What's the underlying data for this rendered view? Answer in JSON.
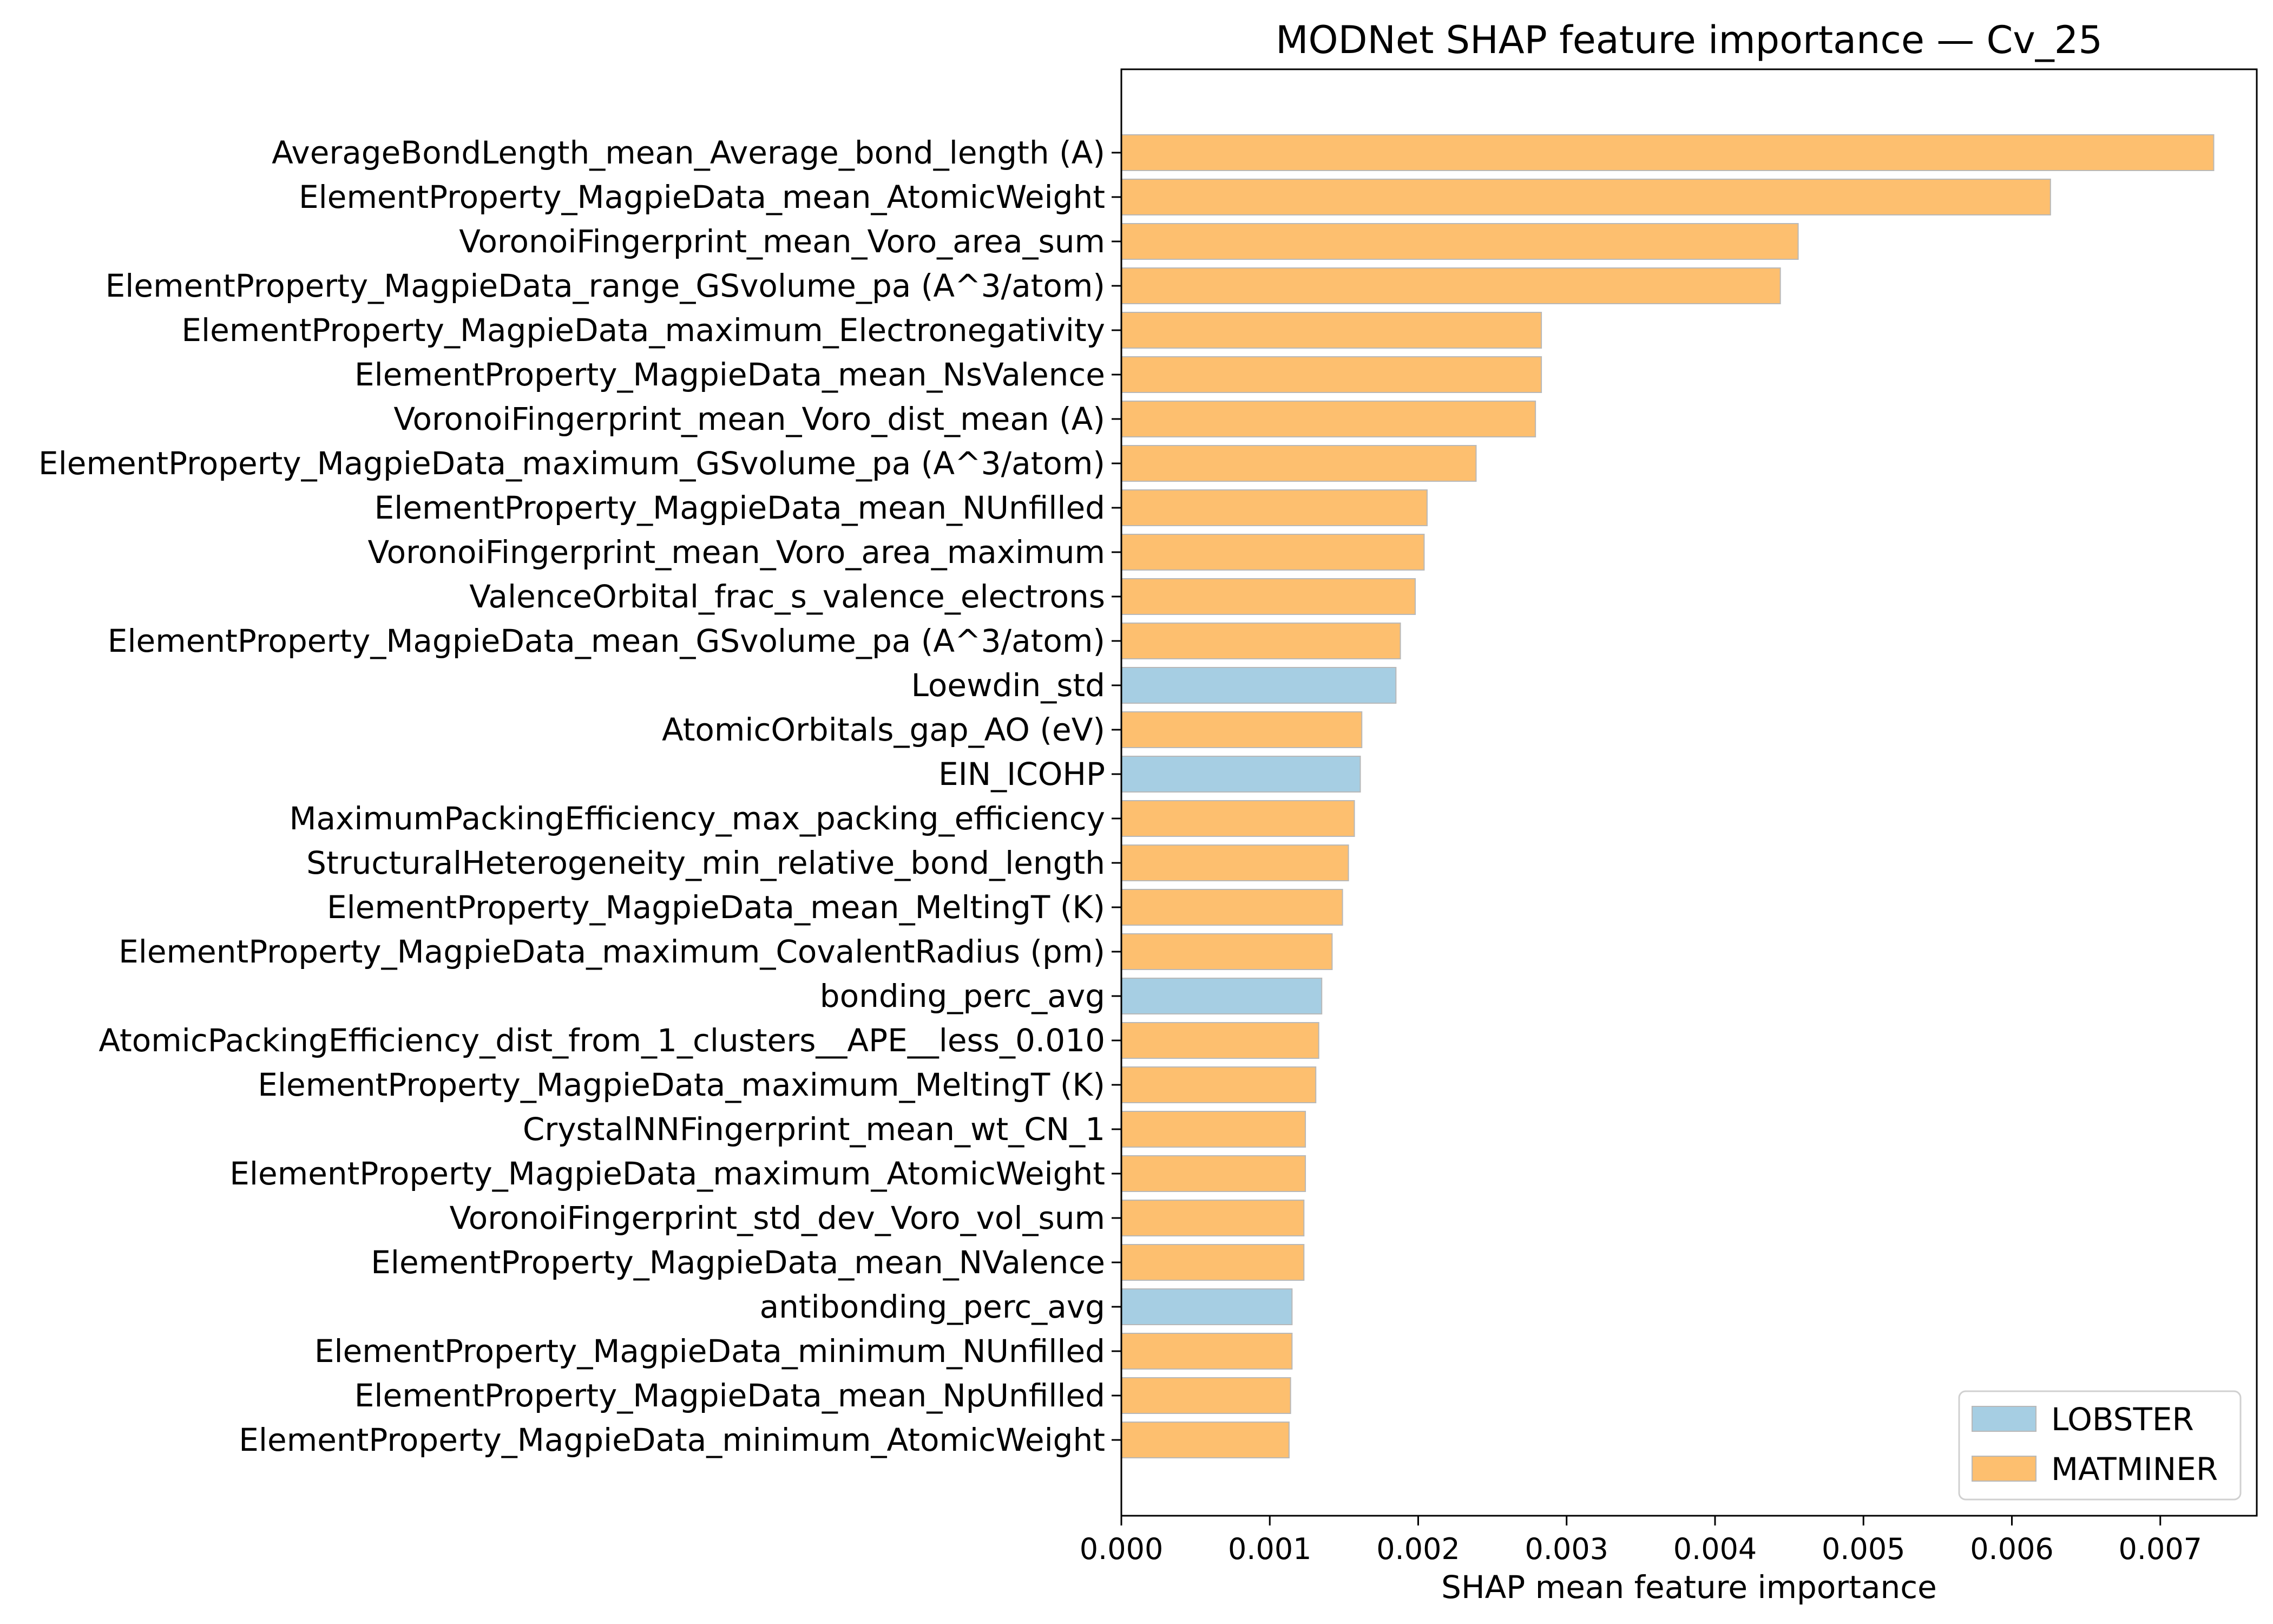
{
  "chart_data": {
    "type": "bar",
    "orientation": "horizontal",
    "title": "MODNet SHAP feature importance — Cv_25",
    "xlabel": "SHAP mean feature importance",
    "ylabel": "",
    "xlim": [
      0,
      0.00765
    ],
    "xticks": [
      "0.000",
      "0.001",
      "0.002",
      "0.003",
      "0.004",
      "0.005",
      "0.006",
      "0.007"
    ],
    "xtick_values": [
      0,
      0.001,
      0.002,
      0.003,
      0.004,
      0.005,
      0.006,
      0.007
    ],
    "grid": false,
    "legend_position": "bottom-right",
    "groups": [
      {
        "name": "LOBSTER",
        "color": "#a6cee3"
      },
      {
        "name": "MATMINER",
        "color": "#fdbf6f"
      }
    ],
    "bars": [
      {
        "label": "AverageBondLength_mean_Average_bond_length (A)",
        "value": 0.00736,
        "group": "MATMINER"
      },
      {
        "label": "ElementProperty_MagpieData_mean_AtomicWeight",
        "value": 0.00626,
        "group": "MATMINER"
      },
      {
        "label": "VoronoiFingerprint_mean_Voro_area_sum",
        "value": 0.00456,
        "group": "MATMINER"
      },
      {
        "label": "ElementProperty_MagpieData_range_GSvolume_pa (A^3/atom)",
        "value": 0.00444,
        "group": "MATMINER"
      },
      {
        "label": "ElementProperty_MagpieData_maximum_Electronegativity",
        "value": 0.00283,
        "group": "MATMINER"
      },
      {
        "label": "ElementProperty_MagpieData_mean_NsValence",
        "value": 0.00283,
        "group": "MATMINER"
      },
      {
        "label": "VoronoiFingerprint_mean_Voro_dist_mean (A)",
        "value": 0.00279,
        "group": "MATMINER"
      },
      {
        "label": "ElementProperty_MagpieData_maximum_GSvolume_pa (A^3/atom)",
        "value": 0.00239,
        "group": "MATMINER"
      },
      {
        "label": "ElementProperty_MagpieData_mean_NUnfilled",
        "value": 0.00206,
        "group": "MATMINER"
      },
      {
        "label": "VoronoiFingerprint_mean_Voro_area_maximum",
        "value": 0.00204,
        "group": "MATMINER"
      },
      {
        "label": "ValenceOrbital_frac_s_valence_electrons",
        "value": 0.00198,
        "group": "MATMINER"
      },
      {
        "label": "ElementProperty_MagpieData_mean_GSvolume_pa (A^3/atom)",
        "value": 0.00188,
        "group": "MATMINER"
      },
      {
        "label": "Loewdin_std",
        "value": 0.00185,
        "group": "LOBSTER"
      },
      {
        "label": "AtomicOrbitals_gap_AO (eV)",
        "value": 0.00162,
        "group": "MATMINER"
      },
      {
        "label": "EIN_ICOHP",
        "value": 0.00161,
        "group": "LOBSTER"
      },
      {
        "label": "MaximumPackingEfficiency_max_packing_efficiency",
        "value": 0.00157,
        "group": "MATMINER"
      },
      {
        "label": "StructuralHeterogeneity_min_relative_bond_length",
        "value": 0.00153,
        "group": "MATMINER"
      },
      {
        "label": "ElementProperty_MagpieData_mean_MeltingT (K)",
        "value": 0.00149,
        "group": "MATMINER"
      },
      {
        "label": "ElementProperty_MagpieData_maximum_CovalentRadius (pm)",
        "value": 0.00142,
        "group": "MATMINER"
      },
      {
        "label": "bonding_perc_avg",
        "value": 0.00135,
        "group": "LOBSTER"
      },
      {
        "label": "AtomicPackingEfficiency_dist_from_1_clusters__APE__less_0.010",
        "value": 0.00133,
        "group": "MATMINER"
      },
      {
        "label": "ElementProperty_MagpieData_maximum_MeltingT (K)",
        "value": 0.00131,
        "group": "MATMINER"
      },
      {
        "label": "CrystalNNFingerprint_mean_wt_CN_1",
        "value": 0.00124,
        "group": "MATMINER"
      },
      {
        "label": "ElementProperty_MagpieData_maximum_AtomicWeight",
        "value": 0.00124,
        "group": "MATMINER"
      },
      {
        "label": "VoronoiFingerprint_std_dev_Voro_vol_sum",
        "value": 0.00123,
        "group": "MATMINER"
      },
      {
        "label": "ElementProperty_MagpieData_mean_NValence",
        "value": 0.00123,
        "group": "MATMINER"
      },
      {
        "label": "antibonding_perc_avg",
        "value": 0.00115,
        "group": "LOBSTER"
      },
      {
        "label": "ElementProperty_MagpieData_minimum_NUnfilled",
        "value": 0.00115,
        "group": "MATMINER"
      },
      {
        "label": "ElementProperty_MagpieData_mean_NpUnfilled",
        "value": 0.00114,
        "group": "MATMINER"
      },
      {
        "label": "ElementProperty_MagpieData_minimum_AtomicWeight",
        "value": 0.00113,
        "group": "MATMINER"
      }
    ]
  }
}
